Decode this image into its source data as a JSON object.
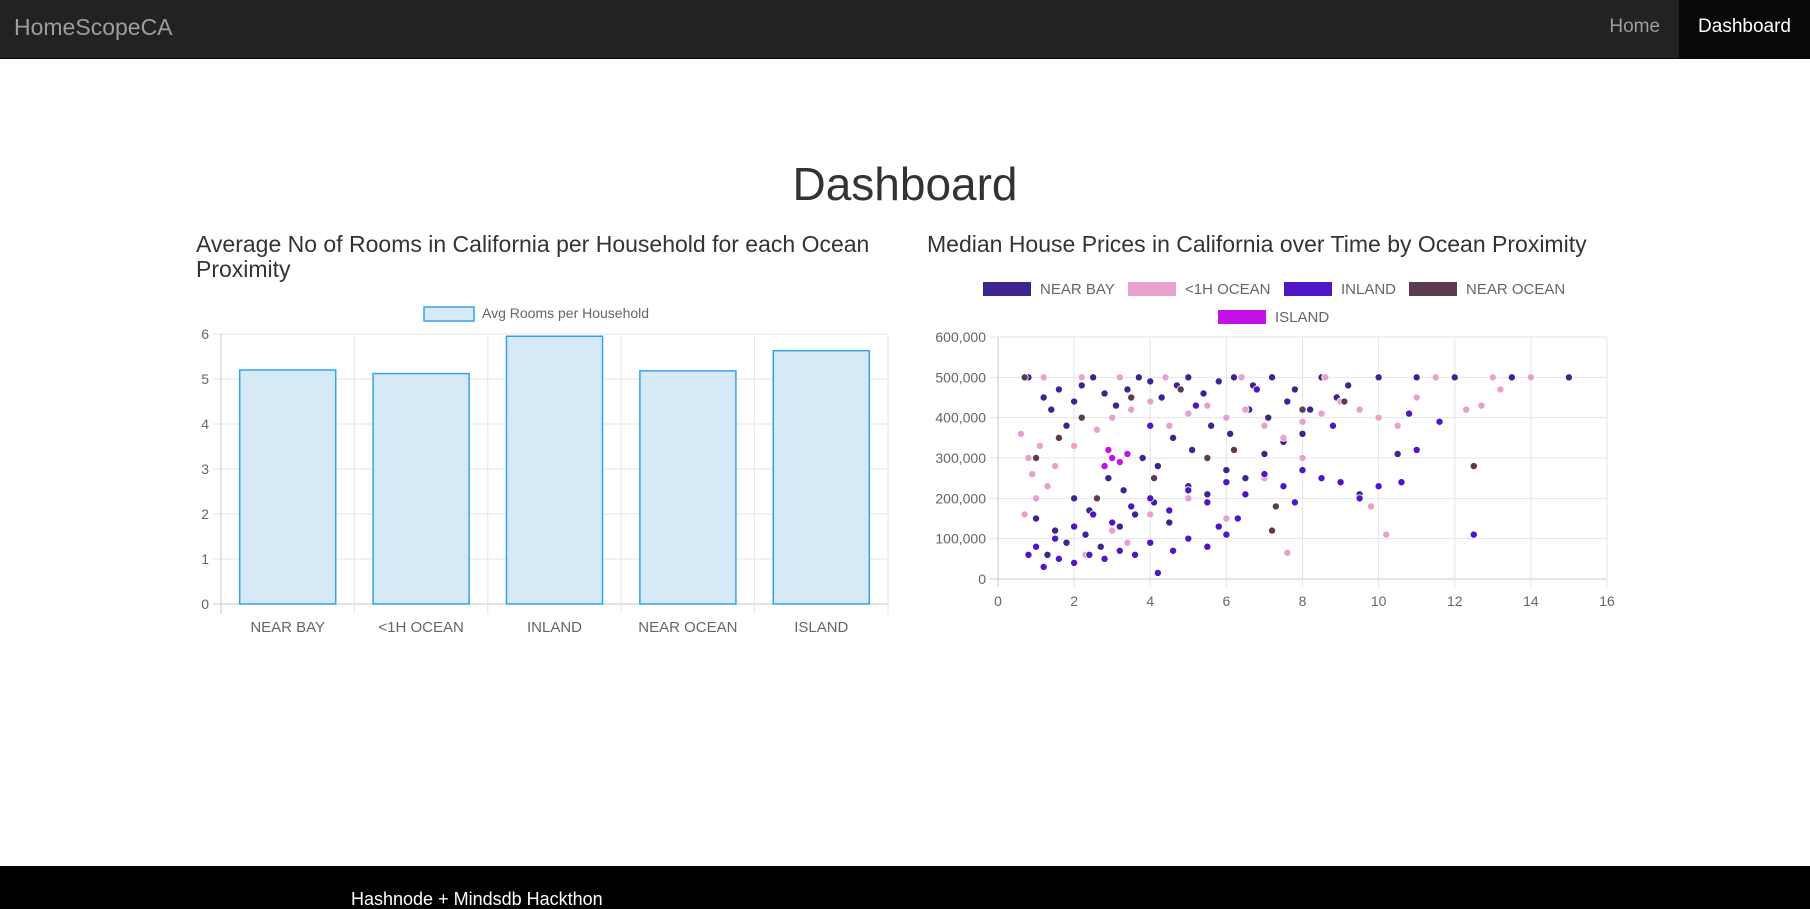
{
  "navbar": {
    "brand": "HomeScopeCA",
    "links": [
      {
        "label": "Home",
        "active": false
      },
      {
        "label": "Dashboard",
        "active": true
      }
    ]
  },
  "page": {
    "title": "Dashboard"
  },
  "footer": {
    "text": "Hashnode + Mindsdb Hackthon"
  },
  "colors": {
    "navbar_bg": "#222222",
    "footer_bg": "#000000",
    "bar_fill": "#d6e9f7",
    "bar_border": "#36a2eb"
  },
  "chart_data": [
    {
      "type": "bar",
      "title": "Average No of Rooms in California per Household for each Ocean Proximity",
      "categories": [
        "NEAR BAY",
        "<1H OCEAN",
        "INLAND",
        "NEAR OCEAN",
        "ISLAND"
      ],
      "series": [
        {
          "name": "Avg Rooms per Household",
          "values": [
            5.2,
            5.12,
            5.95,
            5.18,
            5.63
          ]
        }
      ],
      "ylim": [
        0,
        6
      ],
      "yticks": [
        "0",
        "1",
        "2",
        "3",
        "4",
        "5",
        "6"
      ],
      "legend": "top",
      "grid": true
    },
    {
      "type": "scatter",
      "title": "Median House Prices in California over Time by Ocean Proximity",
      "legend": "top",
      "grid": true,
      "xlim": [
        0,
        16
      ],
      "ylim": [
        0,
        600000
      ],
      "xticks": [
        "0",
        "2",
        "4",
        "6",
        "8",
        "10",
        "12",
        "14",
        "16"
      ],
      "yticks": [
        "0",
        "100,000",
        "200,000",
        "300,000",
        "400,000",
        "500,000",
        "600,000"
      ],
      "series": [
        {
          "name": "NEAR BAY",
          "color": "#3d2590",
          "points": [
            [
              0.8,
              500000
            ],
            [
              1.2,
              450000
            ],
            [
              1.4,
              420000
            ],
            [
              1.6,
              470000
            ],
            [
              1.8,
              380000
            ],
            [
              2.0,
              440000
            ],
            [
              2.2,
              480000
            ],
            [
              2.5,
              500000
            ],
            [
              2.8,
              460000
            ],
            [
              3.1,
              430000
            ],
            [
              3.4,
              470000
            ],
            [
              3.7,
              500000
            ],
            [
              4.0,
              490000
            ],
            [
              4.3,
              450000
            ],
            [
              4.7,
              480000
            ],
            [
              5.0,
              500000
            ],
            [
              5.4,
              460000
            ],
            [
              5.8,
              490000
            ],
            [
              6.2,
              500000
            ],
            [
              6.7,
              480000
            ],
            [
              7.2,
              500000
            ],
            [
              7.8,
              470000
            ],
            [
              8.5,
              500000
            ],
            [
              9.2,
              480000
            ],
            [
              10.0,
              500000
            ],
            [
              11.0,
              500000
            ],
            [
              12.0,
              500000
            ],
            [
              13.5,
              500000
            ],
            [
              15.0,
              500000
            ],
            [
              1.0,
              150000
            ],
            [
              1.5,
              120000
            ],
            [
              2.0,
              200000
            ],
            [
              2.4,
              170000
            ],
            [
              2.9,
              250000
            ],
            [
              3.3,
              220000
            ],
            [
              3.8,
              300000
            ],
            [
              4.2,
              280000
            ],
            [
              4.6,
              350000
            ],
            [
              5.1,
              320000
            ],
            [
              5.6,
              380000
            ],
            [
              6.1,
              360000
            ],
            [
              6.6,
              420000
            ],
            [
              7.1,
              400000
            ],
            [
              7.6,
              440000
            ],
            [
              8.2,
              420000
            ],
            [
              8.9,
              450000
            ],
            [
              1.3,
              60000
            ],
            [
              1.8,
              90000
            ],
            [
              2.3,
              110000
            ],
            [
              2.7,
              80000
            ],
            [
              3.2,
              130000
            ],
            [
              3.6,
              160000
            ],
            [
              4.1,
              190000
            ],
            [
              4.5,
              140000
            ],
            [
              5.0,
              230000
            ],
            [
              5.5,
              210000
            ],
            [
              6.0,
              270000
            ],
            [
              6.5,
              250000
            ],
            [
              7.0,
              310000
            ],
            [
              7.5,
              340000
            ],
            [
              8.0,
              360000
            ],
            [
              12.5,
              110000
            ],
            [
              9.5,
              210000
            ],
            [
              10.5,
              310000
            ]
          ]
        },
        {
          "name": "<1H OCEAN",
          "color": "#e8a0cd",
          "points": [
            [
              0.6,
              360000
            ],
            [
              0.8,
              300000
            ],
            [
              0.9,
              260000
            ],
            [
              1.1,
              330000
            ],
            [
              1.3,
              230000
            ],
            [
              0.7,
              160000
            ],
            [
              1.0,
              200000
            ],
            [
              1.5,
              280000
            ],
            [
              2.0,
              330000
            ],
            [
              2.6,
              370000
            ],
            [
              3.0,
              400000
            ],
            [
              3.5,
              420000
            ],
            [
              4.0,
              440000
            ],
            [
              4.5,
              380000
            ],
            [
              5.0,
              410000
            ],
            [
              5.5,
              430000
            ],
            [
              6.0,
              400000
            ],
            [
              6.5,
              420000
            ],
            [
              7.0,
              380000
            ],
            [
              7.5,
              350000
            ],
            [
              8.0,
              390000
            ],
            [
              8.5,
              410000
            ],
            [
              9.0,
              440000
            ],
            [
              9.5,
              420000
            ],
            [
              10.0,
              400000
            ],
            [
              10.5,
              380000
            ],
            [
              11.0,
              450000
            ],
            [
              12.3,
              420000
            ],
            [
              12.7,
              430000
            ],
            [
              13.2,
              470000
            ],
            [
              9.8,
              180000
            ],
            [
              10.2,
              110000
            ],
            [
              7.6,
              65000
            ],
            [
              1.2,
              500000
            ],
            [
              2.2,
              500000
            ],
            [
              3.2,
              500000
            ],
            [
              4.4,
              500000
            ],
            [
              6.4,
              500000
            ],
            [
              8.6,
              500000
            ],
            [
              11.5,
              500000
            ],
            [
              13.0,
              500000
            ],
            [
              14.0,
              500000
            ],
            [
              3.0,
              120000
            ],
            [
              4.0,
              160000
            ],
            [
              5.0,
              200000
            ],
            [
              6.0,
              150000
            ],
            [
              7.0,
              250000
            ],
            [
              8.0,
              300000
            ],
            [
              2.3,
              60000
            ],
            [
              3.4,
              90000
            ]
          ]
        },
        {
          "name": "INLAND",
          "color": "#4f16c8",
          "points": [
            [
              1.2,
              30000
            ],
            [
              1.6,
              50000
            ],
            [
              2.0,
              40000
            ],
            [
              2.4,
              60000
            ],
            [
              2.8,
              50000
            ],
            [
              3.2,
              70000
            ],
            [
              3.6,
              60000
            ],
            [
              4.0,
              90000
            ],
            [
              4.2,
              15000
            ],
            [
              4.6,
              70000
            ],
            [
              5.0,
              100000
            ],
            [
              5.5,
              80000
            ],
            [
              6.0,
              110000
            ],
            [
              1.5,
              100000
            ],
            [
              2.0,
              130000
            ],
            [
              2.5,
              160000
            ],
            [
              3.0,
              140000
            ],
            [
              3.5,
              180000
            ],
            [
              4.0,
              200000
            ],
            [
              4.5,
              170000
            ],
            [
              5.0,
              220000
            ],
            [
              5.5,
              190000
            ],
            [
              6.0,
              240000
            ],
            [
              6.5,
              210000
            ],
            [
              7.0,
              260000
            ],
            [
              7.5,
              230000
            ],
            [
              8.0,
              270000
            ],
            [
              8.5,
              250000
            ],
            [
              9.0,
              240000
            ],
            [
              9.5,
              200000
            ],
            [
              10.0,
              230000
            ],
            [
              10.6,
              240000
            ],
            [
              11.0,
              320000
            ],
            [
              11.6,
              390000
            ],
            [
              10.8,
              410000
            ],
            [
              12.5,
              110000
            ],
            [
              4.0,
              380000
            ],
            [
              5.2,
              430000
            ],
            [
              6.8,
              470000
            ],
            [
              8.8,
              380000
            ],
            [
              7.8,
              190000
            ],
            [
              6.3,
              150000
            ],
            [
              5.8,
              130000
            ],
            [
              1.0,
              80000
            ],
            [
              0.8,
              60000
            ]
          ]
        },
        {
          "name": "NEAR OCEAN",
          "color": "#5c3a52",
          "points": [
            [
              0.7,
              500000
            ],
            [
              1.0,
              300000
            ],
            [
              1.6,
              350000
            ],
            [
              2.2,
              400000
            ],
            [
              3.5,
              450000
            ],
            [
              4.8,
              470000
            ],
            [
              5.5,
              300000
            ],
            [
              6.2,
              320000
            ],
            [
              7.3,
              180000
            ],
            [
              7.2,
              120000
            ],
            [
              8.0,
              420000
            ],
            [
              12.5,
              280000
            ],
            [
              2.6,
              200000
            ],
            [
              4.1,
              250000
            ],
            [
              9.1,
              440000
            ]
          ]
        },
        {
          "name": "ISLAND",
          "color": "#c610e8",
          "points": [
            [
              2.8,
              280000
            ],
            [
              3.0,
              300000
            ],
            [
              3.2,
              290000
            ],
            [
              3.4,
              310000
            ],
            [
              2.9,
              320000
            ]
          ]
        }
      ]
    }
  ]
}
